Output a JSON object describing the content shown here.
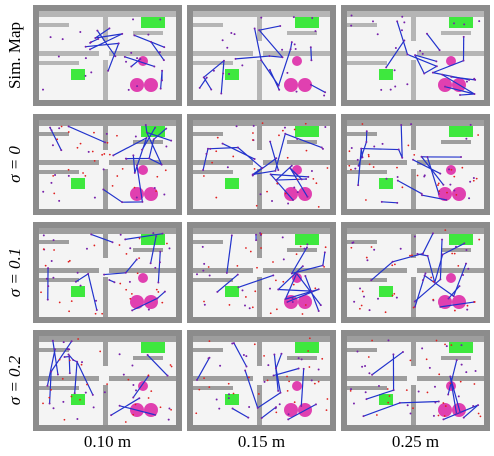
{
  "rows": [
    "Sim. Map",
    "σ = 0",
    "σ = 0.1",
    "σ = 0.2"
  ],
  "columns": [
    "0.10 m",
    "0.15 m",
    "0.25 m"
  ]
}
